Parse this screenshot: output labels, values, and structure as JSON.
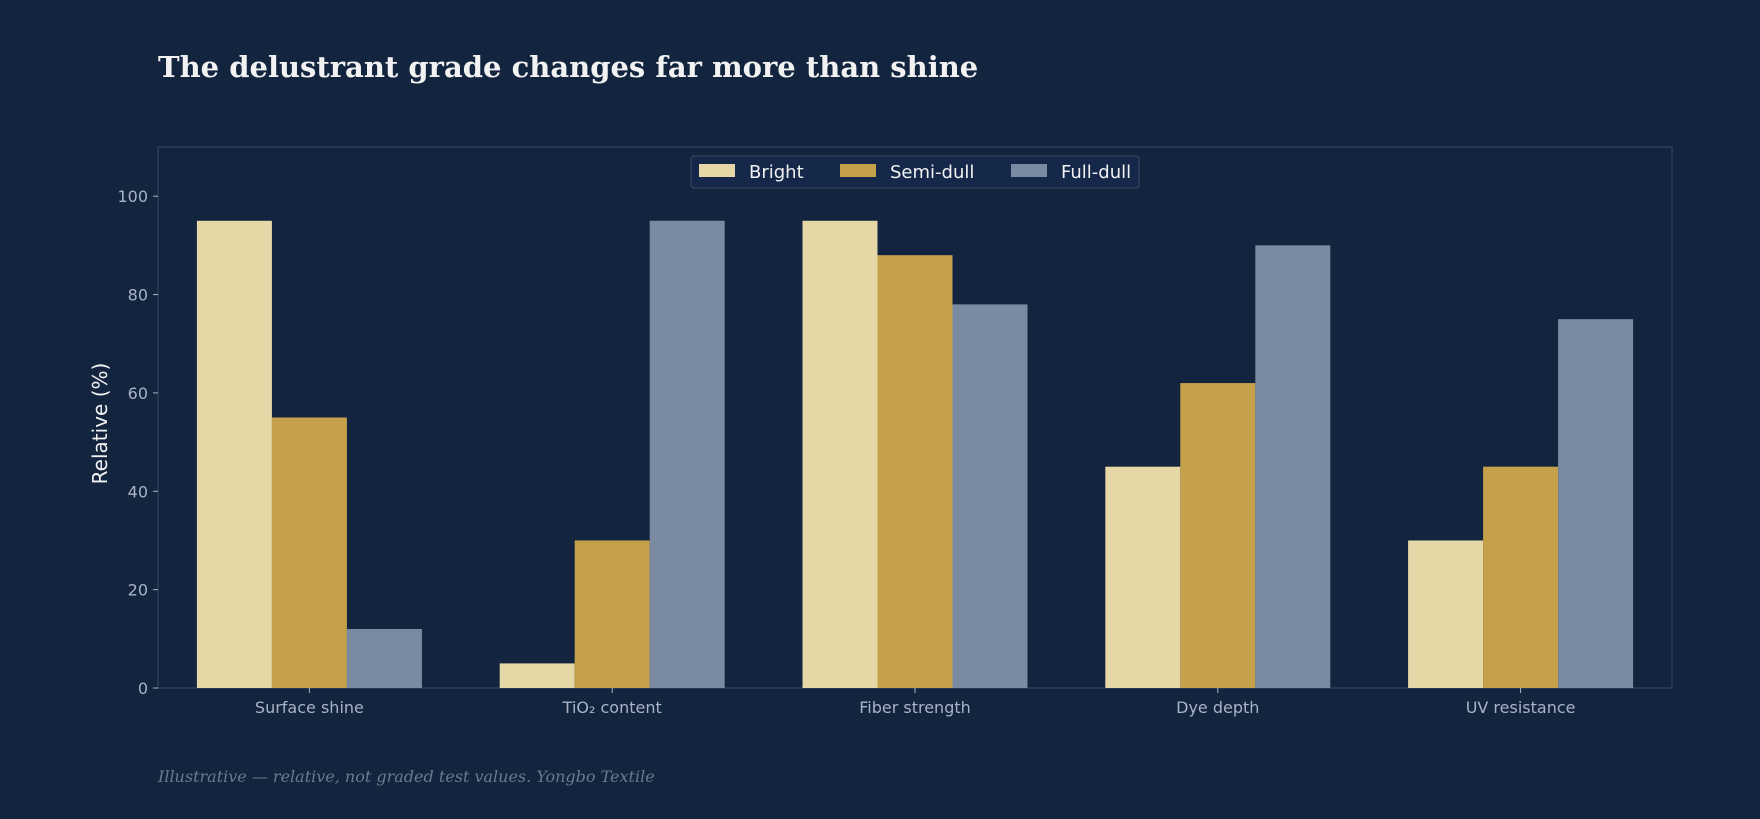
{
  "title": "The delustrant grade changes far more than shine",
  "footnote": "Illustrative — relative, not graded test values.  Yongbo Textile",
  "colors": {
    "background": "#13243f",
    "frame": "#3a4a66",
    "bright": "#e6d7a6",
    "semi_dull": "#c6a14c",
    "full_dull": "#7b8aa3"
  },
  "chart_data": {
    "type": "bar",
    "categories": [
      "Surface shine",
      "TiO₂ content",
      "Fiber strength",
      "Dye depth",
      "UV resistance"
    ],
    "series": [
      {
        "name": "Bright",
        "values": [
          95,
          5,
          95,
          45,
          30
        ]
      },
      {
        "name": "Semi-dull",
        "values": [
          55,
          30,
          88,
          62,
          45
        ]
      },
      {
        "name": "Full-dull",
        "values": [
          12,
          95,
          78,
          90,
          75
        ]
      }
    ],
    "ylabel": "Relative  (%)",
    "xlabel": "",
    "ylim": [
      0,
      110
    ],
    "yticks": [
      0,
      20,
      40,
      60,
      80,
      100
    ],
    "grid": false,
    "legend": "top-center"
  }
}
